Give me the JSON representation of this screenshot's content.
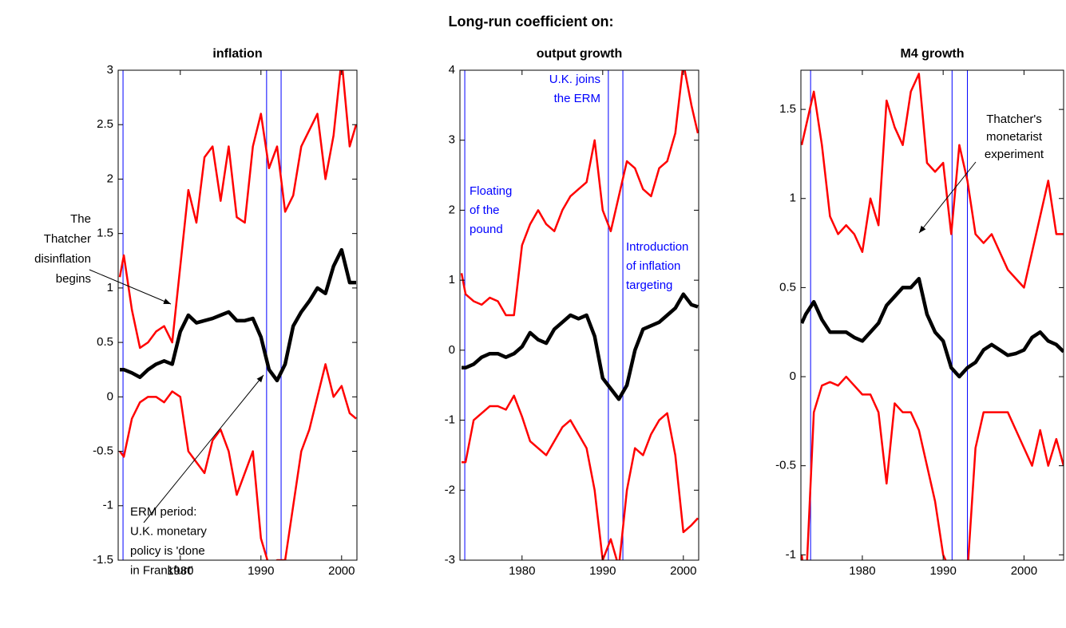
{
  "suptitle": "Long-run coefficient on:",
  "chart_data": [
    {
      "type": "line",
      "title": "inflation",
      "x": [
        1972.5,
        1973,
        1974,
        1975,
        1976,
        1977,
        1978,
        1979,
        1980,
        1981,
        1982,
        1983,
        1984,
        1985,
        1986,
        1987,
        1988,
        1989,
        1990,
        1991,
        1992,
        1993,
        1994,
        1995,
        1996,
        1997,
        1998,
        1999,
        2000,
        2001,
        2001.8
      ],
      "series": [
        {
          "color": "#ff0000",
          "values": [
            1.1,
            1.3,
            0.8,
            0.45,
            0.5,
            0.6,
            0.65,
            0.5,
            1.2,
            1.9,
            1.6,
            2.2,
            2.3,
            1.8,
            2.3,
            1.65,
            1.6,
            2.3,
            2.6,
            2.1,
            2.3,
            1.7,
            1.85,
            2.3,
            2.45,
            2.6,
            2.0,
            2.4,
            3.1,
            2.3,
            2.5
          ]
        },
        {
          "color": "#000000",
          "values": [
            0.25,
            0.25,
            0.22,
            0.18,
            0.25,
            0.3,
            0.33,
            0.3,
            0.6,
            0.75,
            0.68,
            0.7,
            0.72,
            0.75,
            0.78,
            0.7,
            0.7,
            0.72,
            0.55,
            0.25,
            0.15,
            0.3,
            0.65,
            0.78,
            0.88,
            1.0,
            0.95,
            1.2,
            1.35,
            1.05,
            1.05
          ]
        },
        {
          "color": "#ff0000",
          "values": [
            -0.5,
            -0.55,
            -0.2,
            -0.05,
            0,
            0,
            -0.05,
            0.05,
            0,
            -0.5,
            -0.6,
            -0.7,
            -0.4,
            -0.3,
            -0.5,
            -0.9,
            -0.7,
            -0.5,
            -1.3,
            -1.55,
            -1.5,
            -1.5,
            -1.0,
            -0.5,
            -0.3,
            0,
            0.3,
            0,
            0.1,
            -0.15,
            -0.2
          ]
        }
      ],
      "xlim": [
        1972.3,
        2001.9
      ],
      "ylim": [
        -1.5,
        3
      ],
      "xticks": [
        1980,
        1990,
        2000
      ],
      "yticks": [
        -1.5,
        -1,
        -0.5,
        0,
        0.5,
        1,
        1.5,
        2,
        2.5,
        3
      ],
      "vlines": [
        1972.9,
        1990.7,
        1992.5
      ],
      "vline_color": "#0000ff",
      "annotations": [
        {
          "lines": [
            "The",
            "Thatcher",
            "disinflation",
            "begins"
          ],
          "color": "#000000"
        },
        {
          "lines": [
            "ERM period:",
            "U.K. monetary",
            "policy is 'done",
            "in Frankfurt'"
          ],
          "color": "#000000"
        }
      ]
    },
    {
      "type": "line",
      "title": "output growth",
      "x": [
        1972.5,
        1973,
        1974,
        1975,
        1976,
        1977,
        1978,
        1979,
        1980,
        1981,
        1982,
        1983,
        1984,
        1985,
        1986,
        1987,
        1988,
        1989,
        1990,
        1991,
        1992,
        1993,
        1994,
        1995,
        1996,
        1997,
        1998,
        1999,
        2000,
        2001,
        2001.8
      ],
      "series": [
        {
          "color": "#ff0000",
          "values": [
            1.1,
            0.8,
            0.7,
            0.65,
            0.75,
            0.7,
            0.5,
            0.5,
            1.5,
            1.8,
            2.0,
            1.8,
            1.7,
            2.0,
            2.2,
            2.3,
            2.4,
            3.0,
            2.0,
            1.7,
            2.2,
            2.7,
            2.6,
            2.3,
            2.2,
            2.6,
            2.7,
            3.1,
            4.1,
            3.5,
            3.1
          ]
        },
        {
          "color": "#000000",
          "values": [
            -0.25,
            -0.25,
            -0.2,
            -0.1,
            -0.05,
            -0.05,
            -0.1,
            -0.05,
            0.05,
            0.25,
            0.15,
            0.1,
            0.3,
            0.4,
            0.5,
            0.45,
            0.5,
            0.2,
            -0.4,
            -0.55,
            -0.7,
            -0.5,
            0,
            0.3,
            0.35,
            0.4,
            0.5,
            0.6,
            0.8,
            0.65,
            0.62
          ]
        },
        {
          "color": "#ff0000",
          "values": [
            -1.6,
            -1.6,
            -1,
            -0.9,
            -0.8,
            -0.8,
            -0.85,
            -0.65,
            -0.95,
            -1.3,
            -1.4,
            -1.5,
            -1.3,
            -1.1,
            -1,
            -1.2,
            -1.4,
            -2,
            -3,
            -2.7,
            -3.1,
            -2,
            -1.4,
            -1.5,
            -1.2,
            -1,
            -0.9,
            -1.5,
            -2.6,
            -2.5,
            -2.4
          ]
        }
      ],
      "xlim": [
        1972.3,
        2001.9
      ],
      "ylim": [
        -3,
        4
      ],
      "xticks": [
        1980,
        1990,
        2000
      ],
      "yticks": [
        -3,
        -2,
        -1,
        0,
        1,
        2,
        3,
        4
      ],
      "vlines": [
        1972.9,
        1990.7,
        1992.5
      ],
      "vline_color": "#0000ff",
      "annotations": [
        {
          "lines": [
            "Floating",
            "of the",
            "pound"
          ],
          "color": "#0000ff"
        },
        {
          "lines": [
            "U.K. joins",
            "the ERM"
          ],
          "color": "#0000ff"
        },
        {
          "lines": [
            "Introduction",
            "of inflation",
            "targeting"
          ],
          "color": "#0000ff"
        }
      ]
    },
    {
      "type": "line",
      "title": "M4 growth",
      "x": [
        1972.5,
        1973,
        1974,
        1975,
        1976,
        1977,
        1978,
        1979,
        1980,
        1981,
        1982,
        1983,
        1984,
        1985,
        1986,
        1987,
        1988,
        1989,
        1990,
        1991,
        1992,
        1993,
        1994,
        1995,
        1996,
        1997,
        1998,
        1999,
        2000,
        2001,
        2002,
        2003,
        2004,
        2004.9
      ],
      "series": [
        {
          "color": "#ff0000",
          "values": [
            1.3,
            1.4,
            1.6,
            1.3,
            0.9,
            0.8,
            0.85,
            0.8,
            0.7,
            1.0,
            0.85,
            1.55,
            1.4,
            1.3,
            1.6,
            1.7,
            1.2,
            1.15,
            1.2,
            0.8,
            1.3,
            1.1,
            0.8,
            0.75,
            0.8,
            0.7,
            0.6,
            0.55,
            0.5,
            0.7,
            0.9,
            1.1,
            0.8,
            0.8
          ]
        },
        {
          "color": "#000000",
          "values": [
            0.3,
            0.35,
            0.42,
            0.32,
            0.25,
            0.25,
            0.25,
            0.22,
            0.2,
            0.25,
            0.3,
            0.4,
            0.45,
            0.5,
            0.5,
            0.55,
            0.35,
            0.25,
            0.2,
            0.05,
            0,
            0.05,
            0.08,
            0.15,
            0.18,
            0.15,
            0.12,
            0.13,
            0.15,
            0.22,
            0.25,
            0.2,
            0.18,
            0.14
          ]
        },
        {
          "color": "#ff0000",
          "values": [
            -1,
            -1.2,
            -0.2,
            -0.05,
            -0.03,
            -0.05,
            0,
            -0.05,
            -0.1,
            -0.1,
            -0.2,
            -0.6,
            -0.15,
            -0.2,
            -0.2,
            -0.3,
            -0.5,
            -0.7,
            -1,
            -1.1,
            -1.2,
            -1.1,
            -0.4,
            -0.2,
            -0.2,
            -0.2,
            -0.2,
            -0.3,
            -0.4,
            -0.5,
            -0.3,
            -0.5,
            -0.35,
            -0.5
          ]
        }
      ],
      "xlim": [
        1972.4,
        2004.9
      ],
      "ylim": [
        -1.03,
        1.72
      ],
      "xticks": [
        1980,
        1990,
        2000
      ],
      "yticks": [
        -1,
        -0.5,
        0,
        0.5,
        1,
        1.5
      ],
      "vlines": [
        1973.6,
        1991.1,
        1993.0
      ],
      "vline_color": "#0000ff",
      "annotations": [
        {
          "lines": [
            "Thatcher's",
            "monetarist",
            "experiment"
          ],
          "color": "#000000"
        }
      ]
    }
  ]
}
